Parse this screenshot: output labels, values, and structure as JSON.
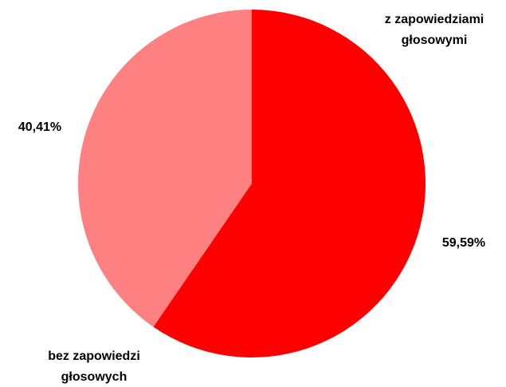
{
  "chart_data": {
    "type": "pie",
    "categories": [
      "z zapowiedziami głosowymi",
      "bez zapowiedzi głosowych"
    ],
    "values": [
      59.59,
      40.41
    ],
    "value_labels": [
      "59,59%",
      "40,41%"
    ],
    "colors": [
      "#ff0000",
      "#ff8080"
    ]
  }
}
